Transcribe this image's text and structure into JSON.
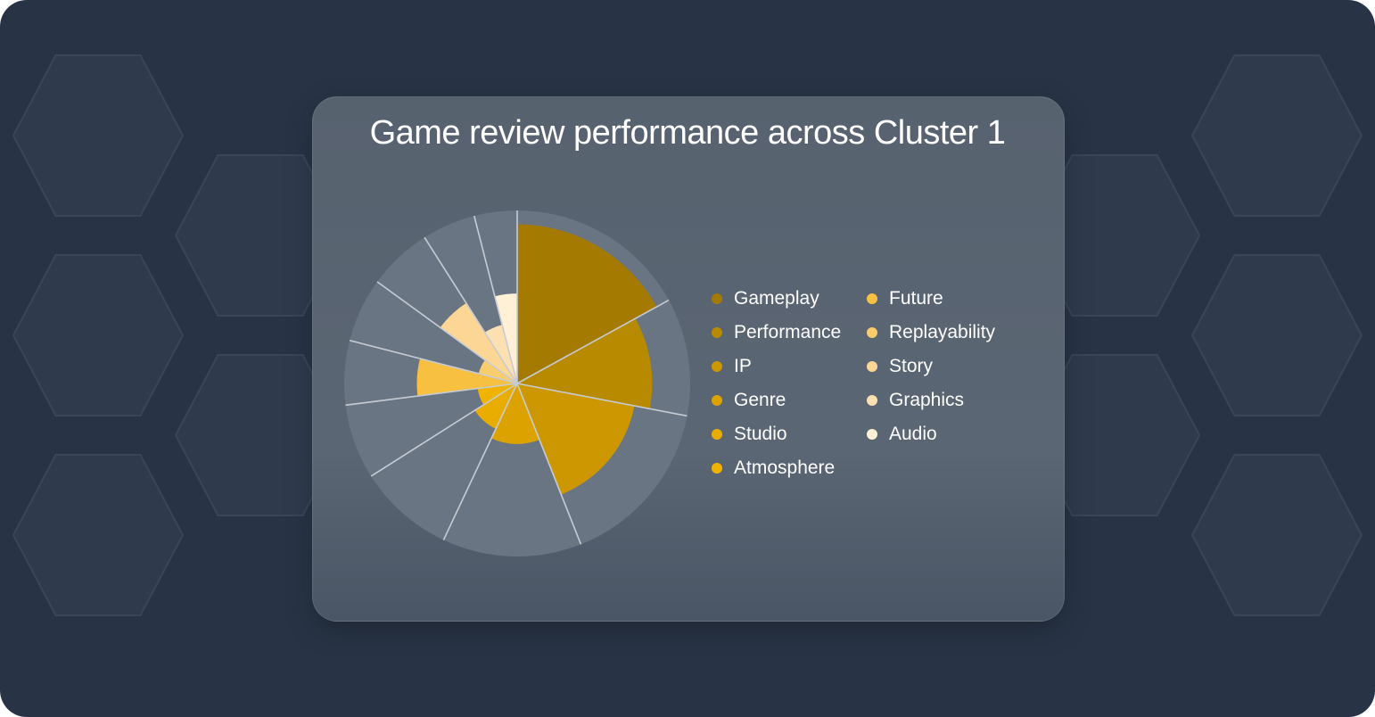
{
  "chart_data": {
    "type": "pie",
    "variant": "polar-area",
    "title": "Game review performance across Cluster 1",
    "categories": [
      "Gameplay",
      "Performance",
      "IP",
      "Genre",
      "Studio",
      "Atmosphere",
      "Future",
      "Replayability",
      "Story",
      "Graphics",
      "Audio"
    ],
    "slice_shares": [
      0.17,
      0.11,
      0.16,
      0.13,
      0.09,
      0.07,
      0.06,
      0.06,
      0.06,
      0.05,
      0.04
    ],
    "values": [
      92,
      78,
      69,
      35,
      29,
      23,
      58,
      23,
      55,
      35,
      52
    ],
    "value_max": 100,
    "colors": [
      "#a57a00",
      "#b88a00",
      "#cc9700",
      "#dca300",
      "#e8ad00",
      "#f0b400",
      "#f7c040",
      "#facc6b",
      "#fcd694",
      "#fde0b2",
      "#fff0d6"
    ],
    "background_slice_color": "#6a7584",
    "legend_placement": "right"
  }
}
